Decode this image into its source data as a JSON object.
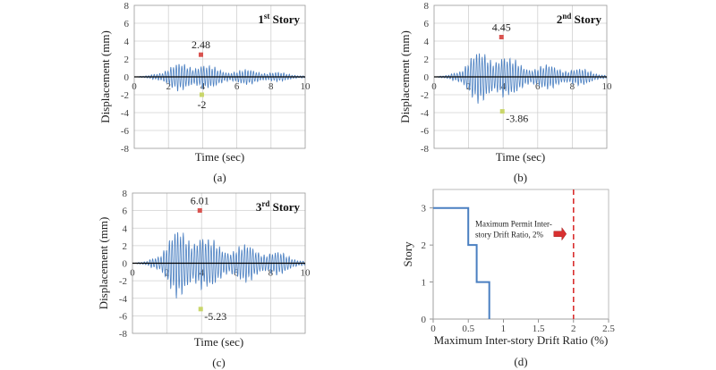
{
  "panels": [
    {
      "caption": "(a)",
      "title_prefix": "1",
      "title_sup": "st",
      "title_suffix": " Story",
      "xlabel": "Time (sec)",
      "ylabel": "Displacement (mm)",
      "max_label": "2.48",
      "min_label": "-2",
      "chart_data": {
        "type": "line",
        "xlim": [
          0,
          10
        ],
        "ylim": [
          -8,
          8
        ],
        "xticks": [
          0,
          2,
          4,
          6,
          8,
          10
        ],
        "yticks": [
          -8,
          -6,
          -4,
          -2,
          0,
          2,
          4,
          6,
          8
        ],
        "grid": true,
        "series": [
          {
            "envelope": [
              [
                0,
                0
              ],
              [
                0.8,
                0.15
              ],
              [
                1.5,
                0.8
              ],
              [
                2,
                1.3
              ],
              [
                2.5,
                1.6
              ],
              [
                3,
                1.8
              ],
              [
                3.5,
                1.9
              ],
              [
                3.9,
                2.1
              ],
              [
                4.3,
                1.4
              ],
              [
                5,
                1.0
              ],
              [
                6,
                0.9
              ],
              [
                7,
                0.9
              ],
              [
                8,
                0.7
              ],
              [
                9,
                0.4
              ],
              [
                10,
                0.2
              ]
            ]
          }
        ],
        "max_point": {
          "x": 3.9,
          "y": 2.48
        },
        "min_point": {
          "x": 3.95,
          "y": -2
        }
      }
    },
    {
      "caption": "(b)",
      "title_prefix": "2",
      "title_sup": "nd",
      "title_suffix": " Story",
      "xlabel": "Time (sec)",
      "ylabel": "Displacement (mm)",
      "max_label": "4.45",
      "min_label": "-3.86",
      "chart_data": {
        "type": "line",
        "xlim": [
          0,
          10
        ],
        "ylim": [
          -8,
          8
        ],
        "xticks": [
          0,
          2,
          4,
          6,
          8,
          10
        ],
        "yticks": [
          -8,
          -6,
          -4,
          -2,
          0,
          2,
          4,
          6,
          8
        ],
        "grid": true,
        "series": [
          {
            "envelope": [
              [
                0,
                0
              ],
              [
                0.8,
                0.2
              ],
              [
                1.5,
                1.2
              ],
              [
                2,
                2.5
              ],
              [
                2.5,
                3.0
              ],
              [
                3,
                3.2
              ],
              [
                3.5,
                3.4
              ],
              [
                3.9,
                3.6
              ],
              [
                4.3,
                2.3
              ],
              [
                5,
                1.8
              ],
              [
                6,
                1.5
              ],
              [
                7,
                1.4
              ],
              [
                8,
                1.2
              ],
              [
                9,
                0.8
              ],
              [
                10,
                0.3
              ]
            ]
          }
        ],
        "max_point": {
          "x": 3.9,
          "y": 4.45
        },
        "min_point": {
          "x": 3.95,
          "y": -3.86
        }
      }
    },
    {
      "caption": "(c)",
      "title_prefix": "3",
      "title_sup": "rd",
      "title_suffix": " Story",
      "xlabel": "Time (sec)",
      "ylabel": "Displacement (mm)",
      "max_label": "6.01",
      "min_label": "-5.23",
      "chart_data": {
        "type": "line",
        "xlim": [
          0,
          10
        ],
        "ylim": [
          -8,
          8
        ],
        "xticks": [
          0,
          2,
          4,
          6,
          8,
          10
        ],
        "yticks": [
          -8,
          -6,
          -4,
          -2,
          0,
          2,
          4,
          6,
          8
        ],
        "grid": true,
        "series": [
          {
            "envelope": [
              [
                0,
                0
              ],
              [
                0.8,
                0.2
              ],
              [
                1.5,
                1.5
              ],
              [
                2,
                3.0
              ],
              [
                2.5,
                4.0
              ],
              [
                3,
                4.4
              ],
              [
                3.5,
                4.6
              ],
              [
                3.9,
                4.8
              ],
              [
                4.3,
                3.0
              ],
              [
                5,
                2.6
              ],
              [
                6,
                2.4
              ],
              [
                7,
                2.2
              ],
              [
                8,
                1.8
              ],
              [
                9,
                1.0
              ],
              [
                10,
                0.4
              ]
            ]
          }
        ],
        "max_point": {
          "x": 3.9,
          "y": 6.01
        },
        "min_point": {
          "x": 3.95,
          "y": -5.23
        }
      }
    }
  ],
  "drift": {
    "caption": "(d)",
    "xlabel": "Maximum Inter-story Drift Ratio (%)",
    "ylabel": "Story",
    "annotation_line1": "Maximum Permit Inter-",
    "annotation_line2": "story Drift Ratio, 2%",
    "chart_data": {
      "type": "line",
      "xlim": [
        0,
        2.5
      ],
      "ylim": [
        0,
        3.5
      ],
      "xticks": [
        0,
        0.5,
        1,
        1.5,
        2,
        2.5
      ],
      "yticks": [
        0,
        1,
        2,
        3
      ],
      "grid": false,
      "drift_profile": [
        [
          0,
          3
        ],
        [
          0.5,
          3
        ],
        [
          0.5,
          2
        ],
        [
          0.62,
          2
        ],
        [
          0.62,
          1
        ],
        [
          0.8,
          1
        ],
        [
          0.8,
          0
        ]
      ],
      "limit_x": 2.0
    }
  },
  "colors": {
    "signal": "#4a7fc1",
    "profile": "#4a7fc1",
    "limit": "#d93030",
    "max_marker": "#d9534f",
    "min_marker": "#c9d66a",
    "grid": "#d0d0d0"
  }
}
